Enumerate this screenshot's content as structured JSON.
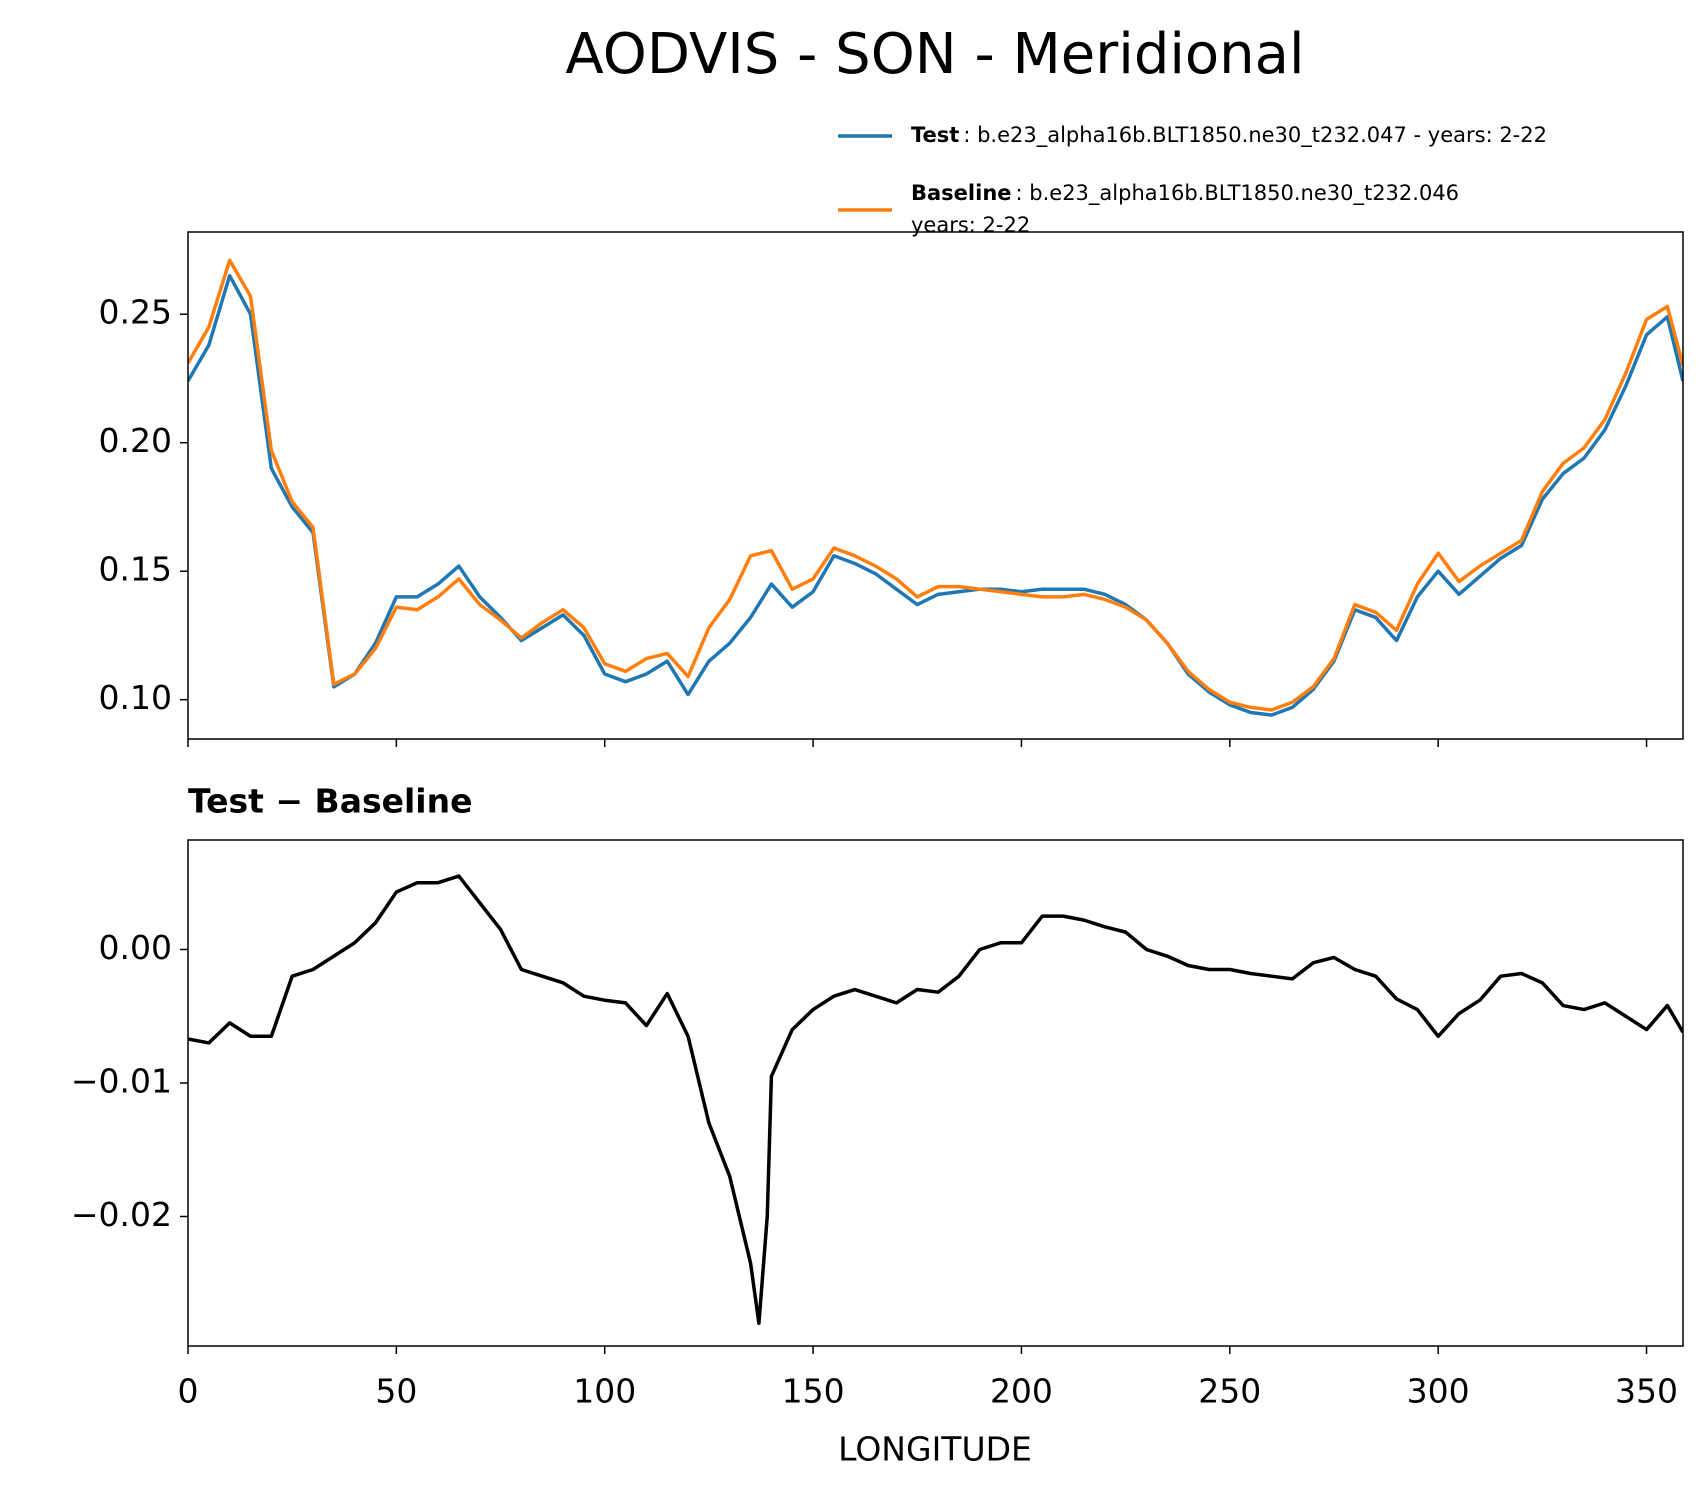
{
  "chart_data": [
    {
      "type": "line",
      "title": "AODVIS - SON - Meridional",
      "x": [
        0,
        5,
        10,
        15,
        20,
        25,
        30,
        35,
        40,
        45,
        50,
        55,
        60,
        65,
        70,
        75,
        80,
        85,
        90,
        95,
        100,
        105,
        110,
        115,
        120,
        125,
        130,
        135,
        140,
        145,
        150,
        155,
        160,
        165,
        170,
        175,
        180,
        185,
        190,
        195,
        200,
        205,
        210,
        215,
        220,
        225,
        230,
        235,
        240,
        245,
        250,
        255,
        260,
        265,
        270,
        275,
        280,
        285,
        290,
        295,
        300,
        305,
        310,
        315,
        320,
        325,
        330,
        335,
        340,
        345,
        350,
        355,
        358.75
      ],
      "series": [
        {
          "name": "Test",
          "description": [
            ": b.e23_alpha16b.BLT1850.ne30_t232.047 - years: 2-22"
          ],
          "color": "#1f77b4",
          "values": [
            0.224,
            0.238,
            0.265,
            0.25,
            0.19,
            0.175,
            0.165,
            0.105,
            0.11,
            0.122,
            0.14,
            0.14,
            0.145,
            0.152,
            0.14,
            0.132,
            0.123,
            0.128,
            0.133,
            0.125,
            0.11,
            0.107,
            0.11,
            0.115,
            0.102,
            0.115,
            0.122,
            0.132,
            0.145,
            0.136,
            0.142,
            0.156,
            0.153,
            0.149,
            0.143,
            0.137,
            0.141,
            0.142,
            0.143,
            0.143,
            0.142,
            0.143,
            0.143,
            0.143,
            0.141,
            0.137,
            0.131,
            0.122,
            0.11,
            0.103,
            0.098,
            0.095,
            0.094,
            0.097,
            0.104,
            0.115,
            0.135,
            0.132,
            0.123,
            0.14,
            0.15,
            0.141,
            0.148,
            0.155,
            0.16,
            0.178,
            0.188,
            0.194,
            0.205,
            0.222,
            0.242,
            0.249,
            0.224
          ]
        },
        {
          "name": "Baseline",
          "description": [
            ": b.e23_alpha16b.BLT1850.ne30_t232.046",
            "years: 2-22"
          ],
          "color": "#ff7f0e",
          "values": [
            0.231,
            0.245,
            0.271,
            0.257,
            0.197,
            0.177,
            0.167,
            0.106,
            0.11,
            0.12,
            0.136,
            0.135,
            0.14,
            0.147,
            0.137,
            0.131,
            0.124,
            0.13,
            0.135,
            0.128,
            0.114,
            0.111,
            0.116,
            0.118,
            0.109,
            0.128,
            0.139,
            0.156,
            0.158,
            0.143,
            0.147,
            0.159,
            0.156,
            0.152,
            0.147,
            0.14,
            0.144,
            0.144,
            0.143,
            0.142,
            0.141,
            0.14,
            0.14,
            0.141,
            0.139,
            0.136,
            0.131,
            0.122,
            0.111,
            0.104,
            0.099,
            0.097,
            0.096,
            0.099,
            0.105,
            0.116,
            0.137,
            0.134,
            0.127,
            0.145,
            0.157,
            0.146,
            0.152,
            0.157,
            0.162,
            0.181,
            0.192,
            0.198,
            0.209,
            0.227,
            0.248,
            0.253,
            0.23
          ]
        }
      ],
      "xlim": [
        0,
        358.75
      ],
      "ylim": [
        0.0847,
        0.282
      ],
      "xticks": [
        0,
        50,
        100,
        150,
        200,
        250,
        300,
        350
      ],
      "xtick_labels": false,
      "yticks": [
        {
          "value": 0.1,
          "label": "0.10"
        },
        0.15,
        {
          "value": 0.2,
          "label": "0.20"
        },
        0.25
      ]
    },
    {
      "type": "line",
      "title": "Test − Baseline",
      "xlabel": "LONGITUDE",
      "x": [
        0,
        5,
        10,
        15,
        20,
        25,
        30,
        35,
        40,
        45,
        50,
        55,
        60,
        65,
        70,
        75,
        80,
        85,
        90,
        95,
        100,
        105,
        110,
        115,
        120,
        125,
        130,
        135,
        137,
        139,
        140,
        145,
        150,
        155,
        160,
        165,
        170,
        175,
        180,
        185,
        190,
        195,
        200,
        205,
        210,
        215,
        220,
        225,
        230,
        235,
        240,
        245,
        250,
        255,
        260,
        265,
        270,
        275,
        280,
        285,
        290,
        295,
        300,
        305,
        310,
        315,
        320,
        325,
        330,
        335,
        340,
        345,
        350,
        355,
        358.75
      ],
      "series": [
        {
          "name": "Test − Baseline",
          "color": "#000000",
          "values": [
            -0.0067,
            -0.007,
            -0.0055,
            -0.0065,
            -0.0065,
            -0.002,
            -0.0015,
            -0.0005,
            0.0005,
            0.002,
            0.0043,
            0.005,
            0.005,
            0.0055,
            0.0035,
            0.0015,
            -0.0015,
            -0.002,
            -0.0025,
            -0.0035,
            -0.0038,
            -0.004,
            -0.0057,
            -0.0033,
            -0.0065,
            -0.013,
            -0.017,
            -0.0235,
            -0.028,
            -0.02,
            -0.0095,
            -0.006,
            -0.0045,
            -0.0035,
            -0.003,
            -0.0035,
            -0.004,
            -0.003,
            -0.0032,
            -0.002,
            0,
            0.0005,
            0.0005,
            0.0025,
            0.0025,
            0.0022,
            0.0017,
            0.0013,
            0,
            -0.0005,
            -0.0012,
            -0.0015,
            -0.0015,
            -0.0018,
            -0.002,
            -0.0022,
            -0.001,
            -0.0006,
            -0.0015,
            -0.002,
            -0.0037,
            -0.0045,
            -0.0065,
            -0.0048,
            -0.0038,
            -0.002,
            -0.0018,
            -0.0025,
            -0.0042,
            -0.0045,
            -0.004,
            -0.005,
            -0.006,
            -0.0042,
            -0.0062
          ]
        }
      ],
      "xlim": [
        0,
        358.75
      ],
      "ylim": [
        -0.0297,
        0.0082
      ],
      "xticks": [
        0,
        50,
        100,
        150,
        200,
        250,
        300,
        350
      ],
      "xtick_labels": true,
      "yticks": [
        {
          "value": -0.02,
          "label": "−0.02"
        },
        {
          "value": -0.01,
          "label": "−0.01"
        },
        {
          "value": 0,
          "label": "0.00"
        }
      ]
    }
  ]
}
